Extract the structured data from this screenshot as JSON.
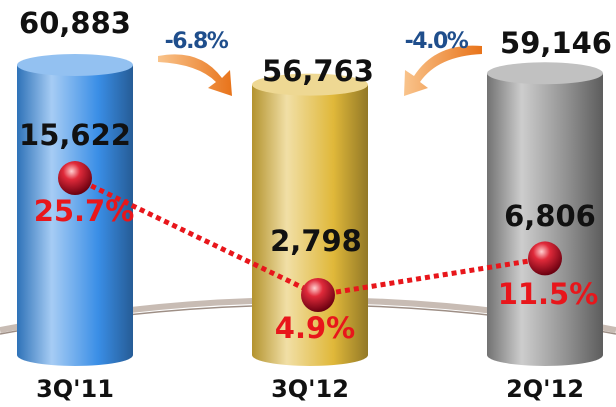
{
  "chart_data": {
    "type": "bar",
    "categories": [
      "3Q'11",
      "3Q'12",
      "2Q'12"
    ],
    "values": [
      60883,
      56763,
      59146
    ],
    "value_labels": [
      "60,883",
      "56,763",
      "59,146"
    ],
    "colors": [
      "#3a8ee6",
      "#e0b83a",
      "#8f8f8f"
    ],
    "line_values": [
      15622,
      2798,
      6806
    ],
    "line_value_labels": [
      "15,622",
      "2,798",
      "6,806"
    ],
    "margins": [
      25.7,
      4.9,
      11.5
    ],
    "margin_labels": [
      "25.7%",
      "4.9%",
      "11.5%"
    ],
    "line_color": "#e8161b",
    "changes": [
      -6.8,
      -4.0
    ],
    "change_labels": [
      "-6.8%",
      "-4.0%"
    ]
  }
}
